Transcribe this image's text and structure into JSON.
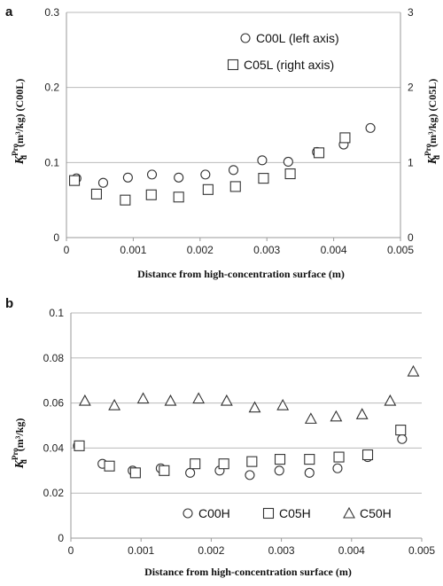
{
  "chart_data": [
    {
      "panel": "a",
      "type": "scatter",
      "xlabel": "Distance from high-concentration surface (m)",
      "ylabel": {
        "main": "K",
        "sub": "d",
        "sup": "Pro",
        "units": " (m³/kg) (C00L)"
      },
      "y2label": {
        "main": "K",
        "sub": "d",
        "sup": "Pro",
        "units": " (m³/kg) (C05L)"
      },
      "xlim": [
        0,
        0.005
      ],
      "xticks": [
        "0",
        "0.001",
        "0.002",
        "0.003",
        "0.004",
        "0.005"
      ],
      "ylim": [
        0,
        0.3
      ],
      "yticks": [
        "0",
        "0.1",
        "0.2",
        "0.3"
      ],
      "y2lim": [
        0,
        3
      ],
      "y2ticks": [
        "0",
        "1",
        "2",
        "3"
      ],
      "grid": true,
      "legend": "top-right",
      "series": [
        {
          "name": "C00L (left axis)",
          "marker": "circle",
          "axis": "left",
          "x": [
            0.00015,
            0.00055,
            0.00092,
            0.00128,
            0.00168,
            0.00208,
            0.0025,
            0.00293,
            0.00332,
            0.00375,
            0.00415,
            0.00455
          ],
          "y": [
            0.079,
            0.073,
            0.08,
            0.084,
            0.08,
            0.084,
            0.09,
            0.103,
            0.101,
            0.114,
            0.124,
            0.146
          ]
        },
        {
          "name": "C05L (right axis)",
          "marker": "square",
          "axis": "right",
          "x": [
            0.00012,
            0.00045,
            0.00088,
            0.00127,
            0.00168,
            0.00212,
            0.00253,
            0.00295,
            0.00335,
            0.00378,
            0.00417
          ],
          "y": [
            0.76,
            0.58,
            0.5,
            0.57,
            0.54,
            0.64,
            0.68,
            0.79,
            0.85,
            1.13,
            1.33
          ]
        }
      ]
    },
    {
      "panel": "b",
      "type": "scatter",
      "xlabel": "Distance from high-concentration surface (m)",
      "ylabel": {
        "main": "K",
        "sub": "d",
        "sup": "Pro",
        "units": " (m³/kg)"
      },
      "xlim": [
        0,
        0.005
      ],
      "xticks": [
        "0",
        "0.001",
        "0.002",
        "0.003",
        "0.004",
        "0.005"
      ],
      "ylim": [
        0,
        0.1
      ],
      "yticks": [
        "0",
        "0.02",
        "0.04",
        "0.06",
        "0.08",
        "0.1"
      ],
      "grid": true,
      "legend": "bottom",
      "series": [
        {
          "name": "C00H",
          "marker": "circle",
          "x": [
            0.0001,
            0.00045,
            0.00088,
            0.00128,
            0.0017,
            0.00212,
            0.00255,
            0.00297,
            0.0034,
            0.0038,
            0.00423,
            0.00472
          ],
          "y": [
            0.041,
            0.033,
            0.03,
            0.031,
            0.029,
            0.03,
            0.028,
            0.03,
            0.029,
            0.031,
            0.036,
            0.044
          ]
        },
        {
          "name": "C05H",
          "marker": "square",
          "x": [
            0.00012,
            0.00055,
            0.00092,
            0.00133,
            0.00177,
            0.00218,
            0.00258,
            0.00298,
            0.0034,
            0.00382,
            0.00423,
            0.0047
          ],
          "y": [
            0.041,
            0.032,
            0.029,
            0.03,
            0.033,
            0.033,
            0.034,
            0.035,
            0.035,
            0.036,
            0.037,
            0.048
          ]
        },
        {
          "name": "C50H",
          "marker": "triangle",
          "x": [
            0.0002,
            0.00062,
            0.00103,
            0.00142,
            0.00182,
            0.00222,
            0.00262,
            0.00302,
            0.00342,
            0.00378,
            0.00415,
            0.00455,
            0.00488
          ],
          "y": [
            0.061,
            0.059,
            0.062,
            0.061,
            0.062,
            0.061,
            0.058,
            0.059,
            0.053,
            0.054,
            0.055,
            0.061,
            0.074
          ]
        }
      ]
    }
  ]
}
